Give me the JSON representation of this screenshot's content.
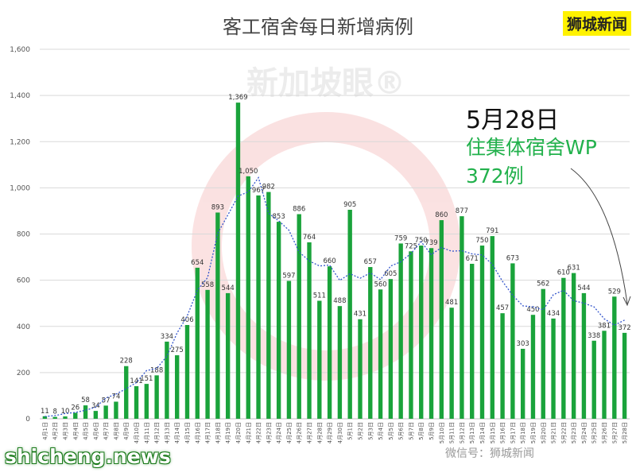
{
  "header": {
    "title": "客工宿舍每日新增病例",
    "brand": "狮城新闻"
  },
  "annotation": {
    "date": "5月28日",
    "line1": "住集体宿舍WP",
    "line2": "372例"
  },
  "footer": {
    "site": "shicheng.news",
    "watermark": "微信号：狮城新闻"
  },
  "colors": {
    "bar": "#1aa33b",
    "trend": "#3355cc",
    "annotation_green": "#22b14c",
    "brand_bg": "#fff200"
  },
  "chart_data": {
    "type": "bar",
    "title": "客工宿舍每日新增病例",
    "xlabel": "",
    "ylabel": "",
    "ylim": [
      0,
      1600
    ],
    "yticks": [
      "0",
      "200",
      "400",
      "600",
      "800",
      "1,000",
      "1,200",
      "1,400",
      "1,600"
    ],
    "grid": true,
    "categories": [
      "4月1日",
      "4月2日",
      "4月3日",
      "4月4日",
      "4月5日",
      "4月6日",
      "4月7日",
      "4月8日",
      "4月9日",
      "4月10日",
      "4月11日",
      "4月12日",
      "4月13日",
      "4月14日",
      "4月15日",
      "4月16日",
      "4月17日",
      "4月18日",
      "4月19日",
      "4月20日",
      "4月21日",
      "4月22日",
      "4月23日",
      "4月24日",
      "4月25日",
      "4月26日",
      "4月27日",
      "4月28日",
      "4月29日",
      "4月30日",
      "5月1日",
      "5月2日",
      "5月3日",
      "5月4日",
      "5月5日",
      "5月6日",
      "5月7日",
      "5月8日",
      "5月9日",
      "5月10日",
      "5月11日",
      "5月12日",
      "5月13日",
      "5月14日",
      "5月15日",
      "5月16日",
      "5月17日",
      "5月18日",
      "5月19日",
      "5月20日",
      "5月21日",
      "5月22日",
      "5月23日",
      "5月24日",
      "5月25日",
      "5月26日",
      "5月27日",
      "5月28日"
    ],
    "series": [
      {
        "values": [
          11,
          8,
          10,
          26,
          58,
          34,
          57,
          74,
          228,
          141,
          151,
          188,
          334,
          275,
          406,
          654,
          558,
          893,
          544,
          1369,
          1050,
          967,
          982,
          853,
          597,
          886,
          764,
          511,
          660,
          488,
          905,
          431,
          657,
          560,
          605,
          759,
          725,
          750,
          739,
          860,
          481,
          877,
          671,
          750,
          791,
          457,
          673,
          303,
          450,
          562,
          434,
          610,
          631,
          544,
          338,
          381,
          529,
          372
        ]
      }
    ],
    "trendline": "moving average (dotted)"
  }
}
